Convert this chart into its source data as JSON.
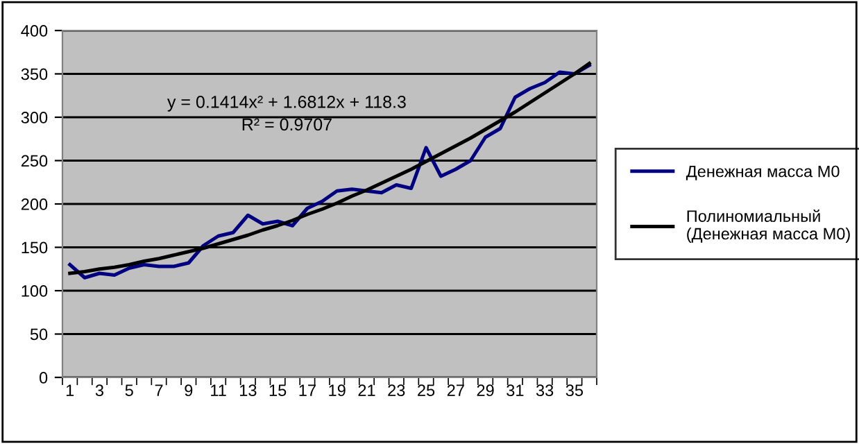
{
  "chart_data": {
    "type": "line",
    "categories": [
      "1",
      null,
      "3",
      null,
      "5",
      null,
      "7",
      null,
      "9",
      null,
      "11",
      null,
      "13",
      null,
      "15",
      null,
      "17",
      null,
      "19",
      null,
      "21",
      null,
      "23",
      null,
      "25",
      null,
      "27",
      null,
      "29",
      null,
      "31",
      null,
      "33",
      null,
      "35",
      null
    ],
    "series": [
      {
        "name": "Денежная масса М0",
        "color": "#000080",
        "values": [
          130,
          115,
          120,
          118,
          126,
          130,
          128,
          128,
          132,
          152,
          163,
          167,
          187,
          177,
          180,
          175,
          195,
          203,
          215,
          217,
          215,
          213,
          222,
          218,
          265,
          232,
          240,
          250,
          277,
          287,
          323,
          333,
          340,
          352,
          350,
          360
        ]
      },
      {
        "name": "Полиномиальный (Денежная масса М0)",
        "color": "#000000",
        "values": [
          120,
          122,
          125,
          127,
          130,
          134,
          137,
          141,
          145,
          149,
          154,
          159,
          164,
          170,
          175,
          181,
          188,
          194,
          201,
          209,
          216,
          224,
          232,
          240,
          249,
          258,
          267,
          276,
          286,
          296,
          306,
          317,
          328,
          339,
          350,
          362
        ]
      }
    ],
    "ylim": [
      0,
      400
    ],
    "yticks": [
      0,
      50,
      100,
      150,
      200,
      250,
      300,
      350,
      400
    ],
    "grid": "y",
    "legend": "right",
    "marker": "none",
    "line_style": "solid",
    "annotations": [
      "y = 0.1414x² + 1.6812x + 118.3",
      "R² = 0.9707"
    ]
  }
}
